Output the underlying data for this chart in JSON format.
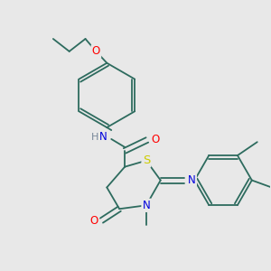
{
  "bg_color": "#e8e8e8",
  "bond_color": "#2d6b5e",
  "atom_colors": {
    "O": "#ff0000",
    "N": "#0000dd",
    "S": "#cccc00",
    "C": "#2d6b5e",
    "H": "#778899"
  },
  "font_size_atom": 8.5,
  "font_size_small": 7,
  "line_width": 1.3,
  "fig_width": 3.0,
  "fig_height": 3.0,
  "dpi": 100
}
